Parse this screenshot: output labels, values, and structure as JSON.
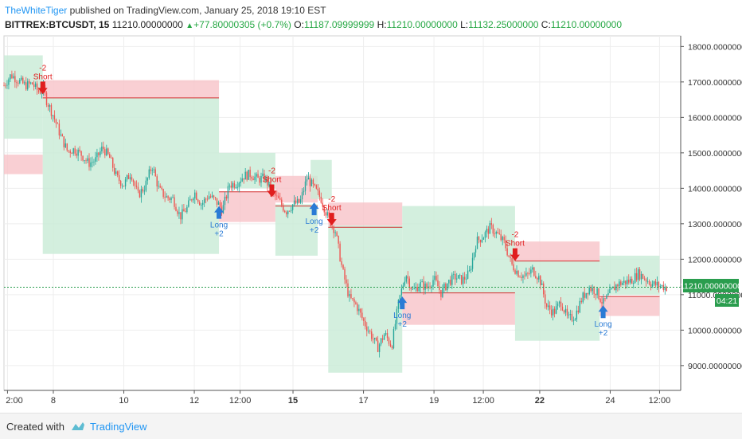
{
  "header": {
    "author": "TheWhiteTiger",
    "published_text": " published on TradingView.com, January 25, 2018 19:10 EST",
    "symbol": "BITTREX:BTCUSDT, 15",
    "last": "11210.00000000",
    "change": "+77.80000305 (+0.7%)",
    "o_label": "O:",
    "o_value": "11187.09999999",
    "h_label": "H:",
    "h_value": "11210.00000000",
    "l_label": "L:",
    "l_value": "11132.25000000",
    "c_label": "C:",
    "c_value": "11210.00000000"
  },
  "price_label": {
    "value": "11210.00000000",
    "countdown": "04:21"
  },
  "footer": {
    "created": "Created with",
    "brand": "TradingView"
  },
  "colors": {
    "up": "#26a69a",
    "down": "#ef5350",
    "short_zone": "#f7c3c8",
    "long_zone": "#c8ebd6",
    "short_line": "#d32f2f",
    "last_price": "#2a9d4e"
  },
  "chart_data": {
    "type": "candlestick",
    "ylim": [
      8300,
      18300
    ],
    "y_ticks": [
      "18000.00000000",
      "17000.00000000",
      "16000.00000000",
      "15000.00000000",
      "14000.00000000",
      "13000.00000000",
      "12000.00000000",
      "11000.00000000",
      "10000.00000000",
      "9000.00000000"
    ],
    "y_tick_values": [
      18000,
      17000,
      16000,
      15000,
      14000,
      13000,
      12000,
      11000,
      10000,
      9000
    ],
    "x_ticks": [
      {
        "label": "2:00",
        "x": 0.5,
        "bold": false
      },
      {
        "label": "8",
        "x": 7,
        "bold": false
      },
      {
        "label": "10",
        "x": 17,
        "bold": false
      },
      {
        "label": "12",
        "x": 27,
        "bold": false
      },
      {
        "label": "12:00",
        "x": 33.5,
        "bold": false
      },
      {
        "label": "15",
        "x": 41,
        "bold": true
      },
      {
        "label": "17",
        "x": 51,
        "bold": false
      },
      {
        "label": "19",
        "x": 61,
        "bold": false
      },
      {
        "label": "12:00",
        "x": 68,
        "bold": false
      },
      {
        "label": "22",
        "x": 76,
        "bold": true
      },
      {
        "label": "24",
        "x": 86,
        "bold": false
      },
      {
        "label": "12:00",
        "x": 93,
        "bold": false
      }
    ],
    "xlim": [
      0,
      96
    ],
    "price_path": [
      [
        0,
        16900
      ],
      [
        1,
        17200
      ],
      [
        2,
        17050
      ],
      [
        3,
        16900
      ],
      [
        4,
        16950
      ],
      [
        5,
        16700
      ],
      [
        5.5,
        16850
      ],
      [
        6,
        16500
      ],
      [
        7,
        16050
      ],
      [
        8,
        15500
      ],
      [
        9,
        15050
      ],
      [
        10,
        15100
      ],
      [
        11,
        14950
      ],
      [
        12,
        14700
      ],
      [
        13,
        14800
      ],
      [
        14,
        15150
      ],
      [
        15,
        14850
      ],
      [
        16,
        14300
      ],
      [
        17,
        14100
      ],
      [
        18,
        14450
      ],
      [
        19,
        13800
      ],
      [
        20,
        14050
      ],
      [
        21,
        14650
      ],
      [
        22,
        13950
      ],
      [
        23,
        13750
      ],
      [
        24,
        13700
      ],
      [
        25,
        13200
      ],
      [
        26,
        13450
      ],
      [
        27,
        13900
      ],
      [
        28,
        13550
      ],
      [
        29,
        13800
      ],
      [
        30,
        13650
      ],
      [
        31,
        13400
      ],
      [
        32,
        14100
      ],
      [
        33,
        14150
      ],
      [
        34,
        14350
      ],
      [
        35,
        14400
      ],
      [
        36,
        14250
      ],
      [
        37,
        14300
      ],
      [
        38,
        13900
      ],
      [
        39,
        13650
      ],
      [
        40,
        13350
      ],
      [
        41,
        13550
      ],
      [
        42,
        13600
      ],
      [
        43,
        14300
      ],
      [
        44,
        14000
      ],
      [
        45,
        13700
      ],
      [
        46,
        13150
      ],
      [
        47,
        12800
      ],
      [
        48,
        11700
      ],
      [
        49,
        10900
      ],
      [
        50,
        10700
      ],
      [
        51,
        10250
      ],
      [
        52,
        9900
      ],
      [
        53,
        9500
      ],
      [
        54,
        9900
      ],
      [
        55,
        9550
      ],
      [
        56,
        10800
      ],
      [
        57,
        11600
      ],
      [
        58,
        11100
      ],
      [
        59,
        11300
      ],
      [
        60,
        11200
      ],
      [
        61,
        11450
      ],
      [
        62,
        11050
      ],
      [
        63,
        11350
      ],
      [
        64,
        11500
      ],
      [
        65,
        11400
      ],
      [
        66,
        11600
      ],
      [
        67,
        12500
      ],
      [
        68,
        12650
      ],
      [
        69,
        12900
      ],
      [
        70,
        12700
      ],
      [
        71,
        12450
      ],
      [
        72,
        11850
      ],
      [
        73,
        11600
      ],
      [
        74,
        11500
      ],
      [
        75,
        11700
      ],
      [
        76,
        11450
      ],
      [
        77,
        10650
      ],
      [
        78,
        10500
      ],
      [
        79,
        10800
      ],
      [
        80,
        10300
      ],
      [
        81,
        10400
      ],
      [
        82,
        10900
      ],
      [
        83,
        11200
      ],
      [
        84,
        11100
      ],
      [
        85,
        10750
      ],
      [
        86,
        11050
      ],
      [
        87,
        11300
      ],
      [
        88,
        11350
      ],
      [
        89,
        11400
      ],
      [
        90,
        11600
      ],
      [
        91,
        11450
      ],
      [
        92,
        11300
      ],
      [
        93,
        11250
      ],
      [
        94,
        11210
      ]
    ],
    "zones": [
      {
        "kind": "long",
        "x0": 0,
        "x1": 5.5,
        "y0": 15400,
        "y1": 17750
      },
      {
        "kind": "short",
        "x0": 0,
        "x1": 5.5,
        "y0": 14400,
        "y1": 14950
      },
      {
        "kind": "short",
        "x0": 5.5,
        "x1": 30.5,
        "y0": 16550,
        "y1": 17050
      },
      {
        "kind": "long",
        "x0": 5.5,
        "x1": 30.5,
        "y0": 12150,
        "y1": 16550
      },
      {
        "kind": "long",
        "x0": 30.5,
        "x1": 38.5,
        "y0": 14000,
        "y1": 15000
      },
      {
        "kind": "short",
        "x0": 30.5,
        "x1": 38.5,
        "y0": 13050,
        "y1": 13900
      },
      {
        "kind": "short",
        "x0": 38.5,
        "x1": 44.5,
        "y0": 13600,
        "y1": 14350
      },
      {
        "kind": "long",
        "x0": 38.5,
        "x1": 44.5,
        "y0": 12100,
        "y1": 13550
      },
      {
        "kind": "long",
        "x0": 43.5,
        "x1": 46.5,
        "y0": 13700,
        "y1": 14800
      },
      {
        "kind": "short",
        "x0": 46,
        "x1": 56.5,
        "y0": 12950,
        "y1": 13600
      },
      {
        "kind": "long",
        "x0": 46,
        "x1": 56.5,
        "y0": 8800,
        "y1": 12950
      },
      {
        "kind": "long",
        "x0": 56.5,
        "x1": 72.5,
        "y0": 11050,
        "y1": 13500
      },
      {
        "kind": "short",
        "x0": 56.5,
        "x1": 72.5,
        "y0": 10150,
        "y1": 11050
      },
      {
        "kind": "short",
        "x0": 72.5,
        "x1": 84.5,
        "y0": 11950,
        "y1": 12500
      },
      {
        "kind": "long",
        "x0": 72.5,
        "x1": 84.5,
        "y0": 9700,
        "y1": 11950
      },
      {
        "kind": "long",
        "x0": 84.5,
        "x1": 93,
        "y0": 11000,
        "y1": 12100
      },
      {
        "kind": "short",
        "x0": 84.5,
        "x1": 93,
        "y0": 10400,
        "y1": 10950
      }
    ],
    "levels": [
      {
        "x0": 5.5,
        "x1": 30.5,
        "y": 16550
      },
      {
        "x0": 30.5,
        "x1": 38.5,
        "y": 13900
      },
      {
        "x0": 38.5,
        "x1": 44.5,
        "y": 13500
      },
      {
        "x0": 46,
        "x1": 56.5,
        "y": 12900
      },
      {
        "x0": 56.5,
        "x1": 72.5,
        "y": 11050
      },
      {
        "x0": 72.5,
        "x1": 84.5,
        "y": 11950
      },
      {
        "x0": 84.5,
        "x1": 93,
        "y": 10950
      }
    ],
    "last_price": 11210,
    "signals": [
      {
        "kind": "short",
        "x": 5.5,
        "price": 16650,
        "lines": [
          "-2",
          "Short"
        ]
      },
      {
        "kind": "long",
        "x": 30.5,
        "price": 13500,
        "lines": [
          "Long",
          "+2"
        ]
      },
      {
        "kind": "short",
        "x": 38,
        "price": 13750,
        "lines": [
          "-2",
          "Short"
        ]
      },
      {
        "kind": "long",
        "x": 44,
        "price": 13600,
        "lines": [
          "Long",
          "+2"
        ]
      },
      {
        "kind": "short",
        "x": 46.5,
        "price": 12950,
        "lines": [
          "-2",
          "Short"
        ]
      },
      {
        "kind": "long",
        "x": 56.5,
        "price": 10950,
        "lines": [
          "Long",
          "+2"
        ]
      },
      {
        "kind": "short",
        "x": 72.5,
        "price": 11950,
        "lines": [
          "-2",
          "Short"
        ]
      },
      {
        "kind": "long",
        "x": 85,
        "price": 10700,
        "lines": [
          "Long",
          "+2"
        ]
      }
    ]
  }
}
